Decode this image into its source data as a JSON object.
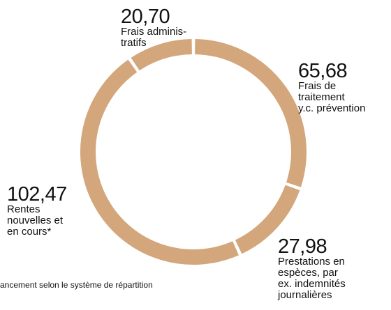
{
  "chart_data": {
    "type": "donut",
    "categories": [
      "Frais de\ntraitement\ny.c. prévention",
      "Prestations en\nespèces, par\nex. indemnités\njournalières",
      "Rentes\nnouvelles et\nen cours*",
      "Frais adminis-\ntratifs"
    ],
    "values": [
      65.68,
      27.98,
      102.47,
      20.7
    ],
    "value_labels": [
      "65,68",
      "27,98",
      "102,47",
      "20,70"
    ],
    "color": "#d3a67b",
    "note": "ancement selon le système de répartition"
  }
}
